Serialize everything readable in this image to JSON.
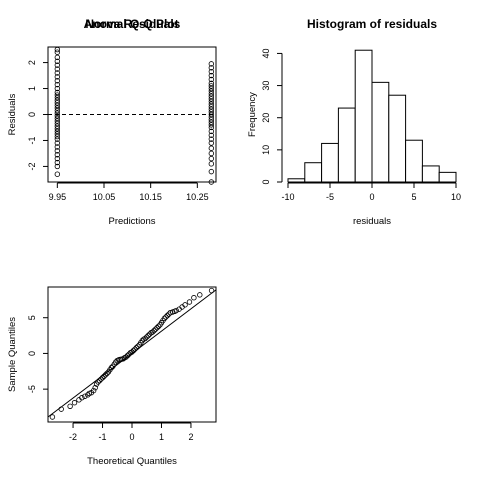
{
  "chart_data": [
    {
      "type": "scatter",
      "title": "Anova Residuals",
      "xlabel": "Predictions",
      "ylabel": "Residuals",
      "xlim": [
        9.93,
        10.29
      ],
      "ylim": [
        -2.6,
        2.6
      ],
      "xticks": [
        "9.95",
        "10.05",
        "10.15",
        "10.25"
      ],
      "xtick_values": [
        9.95,
        10.05,
        10.15,
        10.25
      ],
      "yticks": [
        "-2",
        "-1",
        "0",
        "1",
        "2"
      ],
      "ytick_values": [
        -2,
        -1,
        0,
        1,
        2
      ],
      "reference_line": {
        "y": 0,
        "style": "dashed"
      },
      "groups": [
        {
          "x": 9.95,
          "y": [
            -2.3,
            -2.0,
            -1.85,
            -1.7,
            -1.55,
            -1.4,
            -1.25,
            -1.1,
            -0.95,
            -0.85,
            -0.75,
            -0.65,
            -0.55,
            -0.45,
            -0.35,
            -0.25,
            -0.15,
            -0.05,
            0.05,
            0.15,
            0.25,
            0.35,
            0.45,
            0.55,
            0.65,
            0.75,
            0.85,
            1.0,
            1.15,
            1.3,
            1.45,
            1.6,
            1.75,
            1.9,
            2.05,
            2.2,
            2.4,
            2.5
          ]
        },
        {
          "x": 10.28,
          "y": [
            -2.6,
            -2.2,
            -1.9,
            -1.7,
            -1.5,
            -1.3,
            -1.1,
            -0.95,
            -0.8,
            -0.65,
            -0.5,
            -0.4,
            -0.3,
            -0.2,
            -0.1,
            0.0,
            0.1,
            0.2,
            0.3,
            0.4,
            0.5,
            0.6,
            0.7,
            0.8,
            0.9,
            1.0,
            1.1,
            1.2,
            1.35,
            1.5,
            1.65,
            1.8,
            1.95
          ]
        }
      ]
    },
    {
      "type": "bar",
      "subtype": "histogram",
      "title": "Histogram of residuals",
      "xlabel": "residuals",
      "ylabel": "Frequency",
      "xlim": [
        -10,
        10
      ],
      "ylim": [
        0,
        42
      ],
      "xticks": [
        "-10",
        "-5",
        "0",
        "5",
        "10"
      ],
      "xtick_values": [
        -10,
        -5,
        0,
        5,
        10
      ],
      "yticks": [
        "0",
        "10",
        "20",
        "30",
        "40"
      ],
      "ytick_values": [
        0,
        10,
        20,
        30,
        40
      ],
      "bin_edges": [
        -10,
        -8,
        -6,
        -4,
        -2,
        0,
        2,
        4,
        6,
        8,
        10
      ],
      "values": [
        1,
        6,
        12,
        23,
        41,
        31,
        27,
        13,
        5,
        3
      ]
    },
    {
      "type": "scatter",
      "title": "Normal Q-Q Plot",
      "xlabel": "Theoretical Quantiles",
      "ylabel": "Sample Quantiles",
      "xlim": [
        -2.85,
        2.85
      ],
      "ylim": [
        -9.6,
        9.3
      ],
      "xticks": [
        "-2",
        "-1",
        "0",
        "1",
        "2"
      ],
      "xtick_values": [
        -2,
        -1,
        0,
        1,
        2
      ],
      "yticks": [
        "-5",
        "0",
        "5"
      ],
      "ytick_values": [
        -5,
        0,
        5
      ],
      "qq_line": {
        "x": [
          -2.85,
          2.85
        ],
        "y": [
          -8.9,
          8.9
        ]
      },
      "points": {
        "x": [
          -2.7,
          -2.4,
          -2.1,
          -1.95,
          -1.8,
          -1.7,
          -1.6,
          -1.5,
          -1.45,
          -1.38,
          -1.3,
          -1.25,
          -1.2,
          -1.15,
          -1.1,
          -1.05,
          -1.0,
          -0.95,
          -0.9,
          -0.85,
          -0.8,
          -0.75,
          -0.7,
          -0.65,
          -0.6,
          -0.55,
          -0.5,
          -0.45,
          -0.4,
          -0.35,
          -0.3,
          -0.25,
          -0.2,
          -0.15,
          -0.1,
          -0.05,
          0.0,
          0.05,
          0.1,
          0.15,
          0.2,
          0.25,
          0.3,
          0.35,
          0.4,
          0.45,
          0.5,
          0.55,
          0.6,
          0.65,
          0.7,
          0.75,
          0.8,
          0.85,
          0.9,
          0.95,
          1.0,
          1.05,
          1.1,
          1.15,
          1.2,
          1.25,
          1.3,
          1.38,
          1.45,
          1.5,
          1.6,
          1.7,
          1.8,
          1.95,
          2.1,
          2.3,
          2.7
        ],
        "y": [
          -8.9,
          -7.8,
          -7.4,
          -6.9,
          -6.5,
          -6.2,
          -6.0,
          -5.8,
          -5.6,
          -5.5,
          -5.2,
          -4.8,
          -4.3,
          -4.0,
          -3.8,
          -3.6,
          -3.4,
          -3.2,
          -3.0,
          -2.8,
          -2.6,
          -2.3,
          -2.0,
          -1.8,
          -1.5,
          -1.2,
          -1.0,
          -0.9,
          -0.85,
          -0.8,
          -0.75,
          -0.6,
          -0.5,
          -0.3,
          -0.1,
          0.1,
          0.2,
          0.4,
          0.6,
          0.8,
          1.0,
          1.2,
          1.5,
          1.8,
          2.0,
          2.1,
          2.3,
          2.5,
          2.7,
          2.9,
          3.0,
          3.2,
          3.4,
          3.6,
          3.8,
          4.0,
          4.3,
          4.6,
          4.9,
          5.1,
          5.3,
          5.5,
          5.7,
          5.8,
          5.9,
          6.0,
          6.2,
          6.5,
          6.8,
          7.2,
          7.8,
          8.2,
          8.8
        ]
      }
    }
  ]
}
